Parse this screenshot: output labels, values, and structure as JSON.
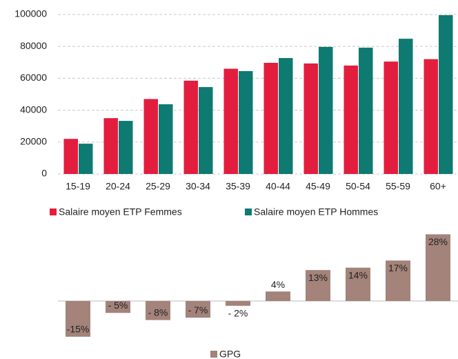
{
  "chart_data": [
    {
      "type": "bar",
      "categories": [
        "15-19",
        "20-24",
        "25-29",
        "30-34",
        "35-39",
        "40-44",
        "45-49",
        "50-54",
        "55-59",
        "60+"
      ],
      "series": [
        {
          "name": "Salaire moyen ETP Femmes",
          "color": "#e31d3d",
          "values": [
            22000,
            35000,
            47000,
            58500,
            66000,
            69700,
            69300,
            68000,
            70500,
            72000
          ]
        },
        {
          "name": "Salaire moyen ETP Hommes",
          "color": "#0e7a72",
          "values": [
            19000,
            33300,
            43700,
            54500,
            64500,
            72700,
            79700,
            79200,
            84800,
            99600
          ]
        }
      ],
      "ylim": [
        0,
        100000
      ],
      "yticks": [
        0,
        20000,
        40000,
        60000,
        80000,
        100000
      ],
      "grid": true
    },
    {
      "type": "bar",
      "series": [
        {
          "name": "GPG",
          "color": "#a3837a",
          "values": [
            -15,
            -5,
            -8,
            -7,
            -2,
            4,
            13,
            14,
            17,
            28
          ],
          "value_labels": [
            "-15%",
            "- 5%",
            "- 8%",
            "- 7%",
            "- 2%",
            "4%",
            "13%",
            "14%",
            "17%",
            "28%"
          ]
        }
      ]
    }
  ]
}
